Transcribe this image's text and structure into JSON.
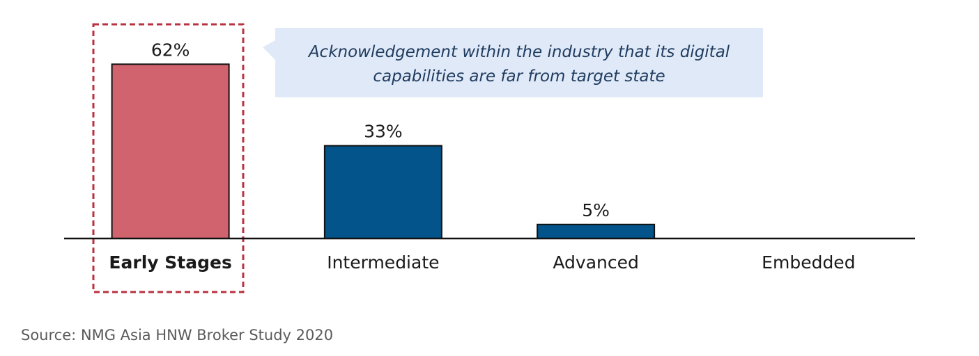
{
  "chart_data": {
    "type": "bar",
    "categories": [
      "Early Stages",
      "Intermediate",
      "Advanced",
      "Embedded"
    ],
    "values": [
      62,
      33,
      5,
      0
    ],
    "value_labels": [
      "62%",
      "33%",
      "5%",
      ""
    ],
    "unit": "%",
    "ylim": [
      0,
      70
    ],
    "highlight_category": "Early Stages",
    "colors": {
      "highlight": "#d1636e",
      "default": "#02548b",
      "bar_outline": "#111111",
      "highlight_frame": "#b8323f",
      "callout_bg": "#dfe9f7",
      "callout_text": "#1f3b5f"
    },
    "annotation": {
      "lines": [
        "Acknowledgement within the industry that its digital",
        "capabilities are far from target state"
      ]
    },
    "grid": false,
    "legend": "none"
  },
  "source": "Source: NMG Asia HNW Broker Study 2020"
}
